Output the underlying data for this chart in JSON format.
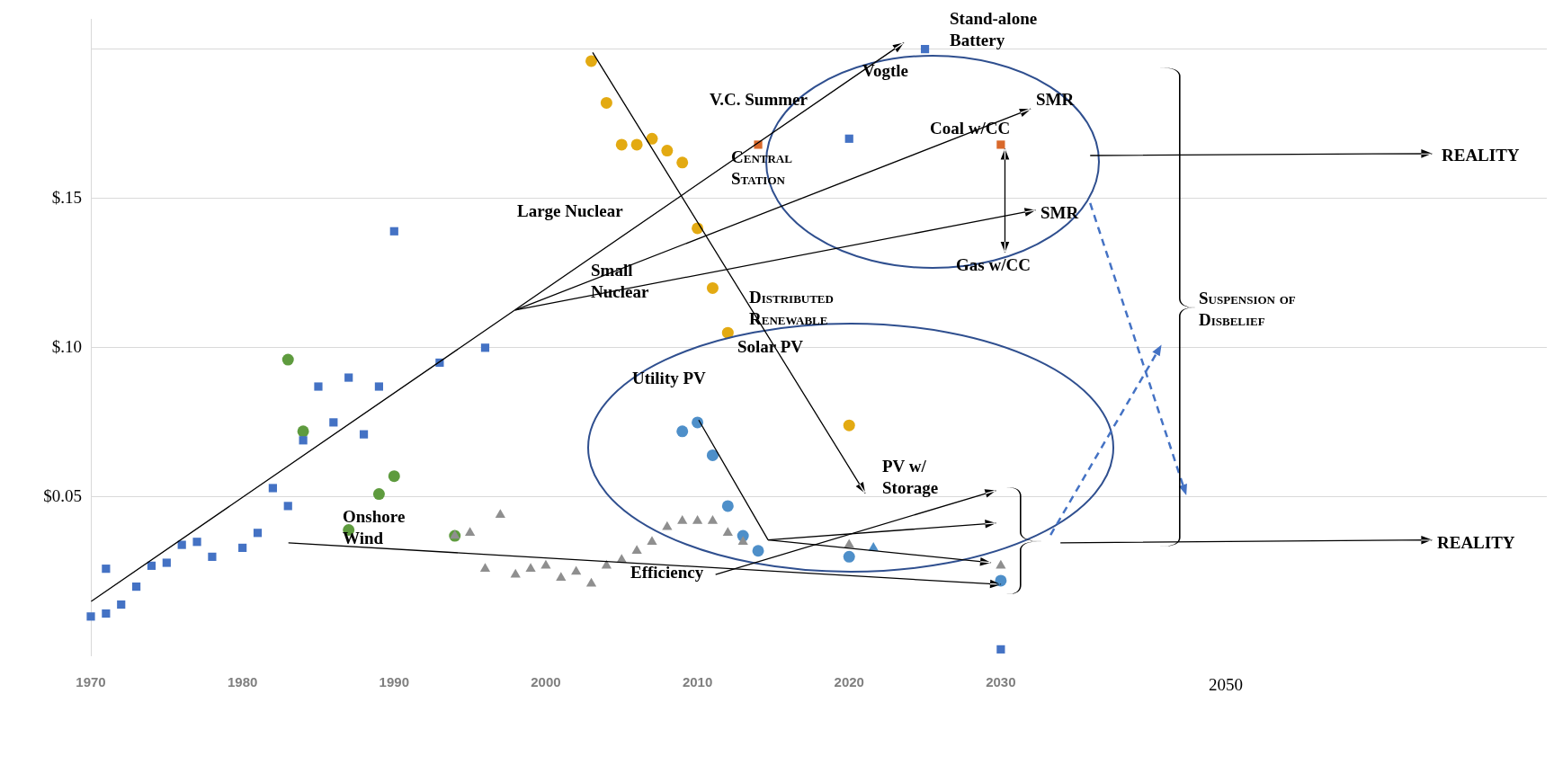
{
  "chart_data": {
    "type": "scatter",
    "xlim": [
      1970,
      2066
    ],
    "ylim": [
      -0.003,
      0.21
    ],
    "xticks": [
      1970,
      1980,
      1990,
      2000,
      2010,
      2020,
      2030
    ],
    "yticks": [
      {
        "value": 0.2,
        "label": null
      },
      {
        "value": 0.15,
        "label": "$.15"
      },
      {
        "value": 0.1,
        "label": "$.10"
      },
      {
        "value": 0.05,
        "label": "$0.05"
      }
    ],
    "grid": "y",
    "legend": false,
    "series": [
      {
        "marker": "square",
        "color": "#4472c4",
        "x": [
          1970,
          1971,
          1971,
          1972,
          1973,
          1974,
          1975,
          1976,
          1977,
          1978,
          1980,
          1981,
          1982,
          1983,
          1984,
          1985,
          1986,
          1987,
          1988,
          1989,
          1990,
          1993,
          1996,
          2020,
          2025,
          2030
        ],
        "values": [
          0.01,
          0.026,
          0.011,
          0.014,
          0.02,
          0.027,
          0.028,
          0.034,
          0.035,
          0.03,
          0.033,
          0.038,
          0.053,
          0.047,
          0.069,
          0.087,
          0.075,
          0.09,
          0.071,
          0.087,
          0.139,
          0.095,
          0.1,
          0.17,
          0.2,
          -0.001
        ]
      },
      {
        "marker": "triangle",
        "color": "#8f8f8f",
        "x": [
          1994,
          1995,
          1996,
          1997,
          1998,
          1999,
          2000,
          2001,
          2002,
          2003,
          2004,
          2005,
          2006,
          2007,
          2008,
          2009,
          2010,
          2011,
          2012,
          2013,
          2020,
          2030
        ],
        "values": [
          0.037,
          0.038,
          0.026,
          0.044,
          0.024,
          0.026,
          0.027,
          0.023,
          0.025,
          0.021,
          0.027,
          0.029,
          0.032,
          0.035,
          0.04,
          0.042,
          0.042,
          0.042,
          0.038,
          0.035,
          0.034,
          0.027
        ]
      },
      {
        "marker": "circle",
        "color": "#5e9b3e",
        "x": [
          1983,
          1984,
          1987,
          1989,
          1990,
          1994
        ],
        "values": [
          0.096,
          0.072,
          0.039,
          0.051,
          0.057,
          0.037
        ]
      },
      {
        "marker": "circle",
        "color": "#e3aa12",
        "x": [
          2003,
          2004,
          2005,
          2006,
          2007,
          2008,
          2009,
          2010,
          2011,
          2012,
          2020
        ],
        "values": [
          0.196,
          0.182,
          0.168,
          0.168,
          0.17,
          0.166,
          0.162,
          0.14,
          0.12,
          0.105,
          0.074
        ]
      },
      {
        "marker": "square",
        "color": "#d9692b",
        "x": [
          2014,
          2030
        ],
        "values": [
          0.168,
          0.168
        ]
      },
      {
        "marker": "circle",
        "color": "#4e8fc9",
        "x": [
          2009,
          2010,
          2011,
          2012,
          2013,
          2014,
          2020,
          2030
        ],
        "values": [
          0.072,
          0.075,
          0.064,
          0.047,
          0.037,
          0.032,
          0.03,
          0.022
        ]
      },
      {
        "marker": "triangle",
        "color": "#4e8fc9",
        "x": [
          2021.6
        ],
        "values": [
          0.033
        ]
      }
    ],
    "annotations": [
      "Stand-alone\nBattery",
      "Vogtle",
      "V.C. Summer",
      "SMR",
      "Coal w/CC",
      "Central\nStation",
      "Large Nuclear",
      "SMR",
      "Gas w/CC",
      "Small\nNuclear",
      "Distributed\nRenewable",
      "Suspension of\nDisbelief",
      "Solar PV",
      "Utility PV",
      "PV w/\nStorage",
      "Onshore\nWind",
      "Efficiency",
      "REALITY",
      "REALITY",
      "2050"
    ]
  }
}
